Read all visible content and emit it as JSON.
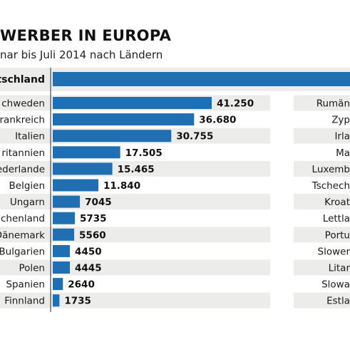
{
  "header": {
    "title": "WERBER IN EUROPA",
    "subtitle": "nar bis Juli 2014 nach Ländern"
  },
  "colors": {
    "bar": "#1f6fb2",
    "row_band": "#ececea",
    "axis": "#4a4a4a"
  },
  "chart_data": {
    "type": "bar",
    "orientation": "horizontal",
    "top_row": {
      "category": "tschland"
    },
    "categories": [
      "chweden",
      "rankreich",
      "Italien",
      "ritannien",
      "ederlande",
      "Belgien",
      "Ungarn",
      "chenland",
      "Dänemark",
      "Bulgarien",
      "Polen",
      "Spanien",
      "Finnland"
    ],
    "values": [
      41250,
      36680,
      30755,
      17505,
      15465,
      11840,
      7045,
      5735,
      5560,
      4450,
      4445,
      2640,
      1735
    ],
    "value_labels": [
      "41.250",
      "36.680",
      "30.755",
      "17.505",
      "15.465",
      "11.840",
      "7045",
      "5735",
      "5560",
      "4450",
      "4445",
      "2640",
      "1735"
    ],
    "right_column_categories": [
      "Rumän",
      "Zyp",
      "Irla",
      "Ma",
      "Luxemb",
      "Tschech",
      "Kroat",
      "Lettla",
      "Portu",
      "Slower",
      "Litar",
      "Slowa",
      "Estla"
    ]
  }
}
